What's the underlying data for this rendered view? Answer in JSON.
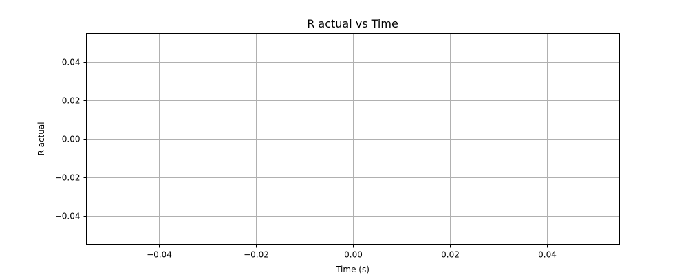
{
  "chart_data": {
    "type": "line",
    "title": "R actual vs Time",
    "xlabel": "Time (s)",
    "ylabel": "R actual",
    "xlim": [
      -0.055,
      0.055
    ],
    "ylim": [
      -0.055,
      0.055
    ],
    "xticks": [
      -0.04,
      -0.02,
      0.0,
      0.02,
      0.04
    ],
    "yticks": [
      -0.04,
      -0.02,
      0.0,
      0.02,
      0.04
    ],
    "xtick_labels": [
      "−0.04",
      "−0.02",
      "0.00",
      "0.02",
      "0.04"
    ],
    "ytick_labels": [
      "−0.04",
      "−0.02",
      "0.00",
      "0.02",
      "0.04"
    ],
    "grid": true,
    "series": [
      {
        "x": [],
        "y": []
      }
    ],
    "colors": {
      "grid": "#b0b0b0",
      "axes": "#000000",
      "background": "#ffffff"
    }
  }
}
